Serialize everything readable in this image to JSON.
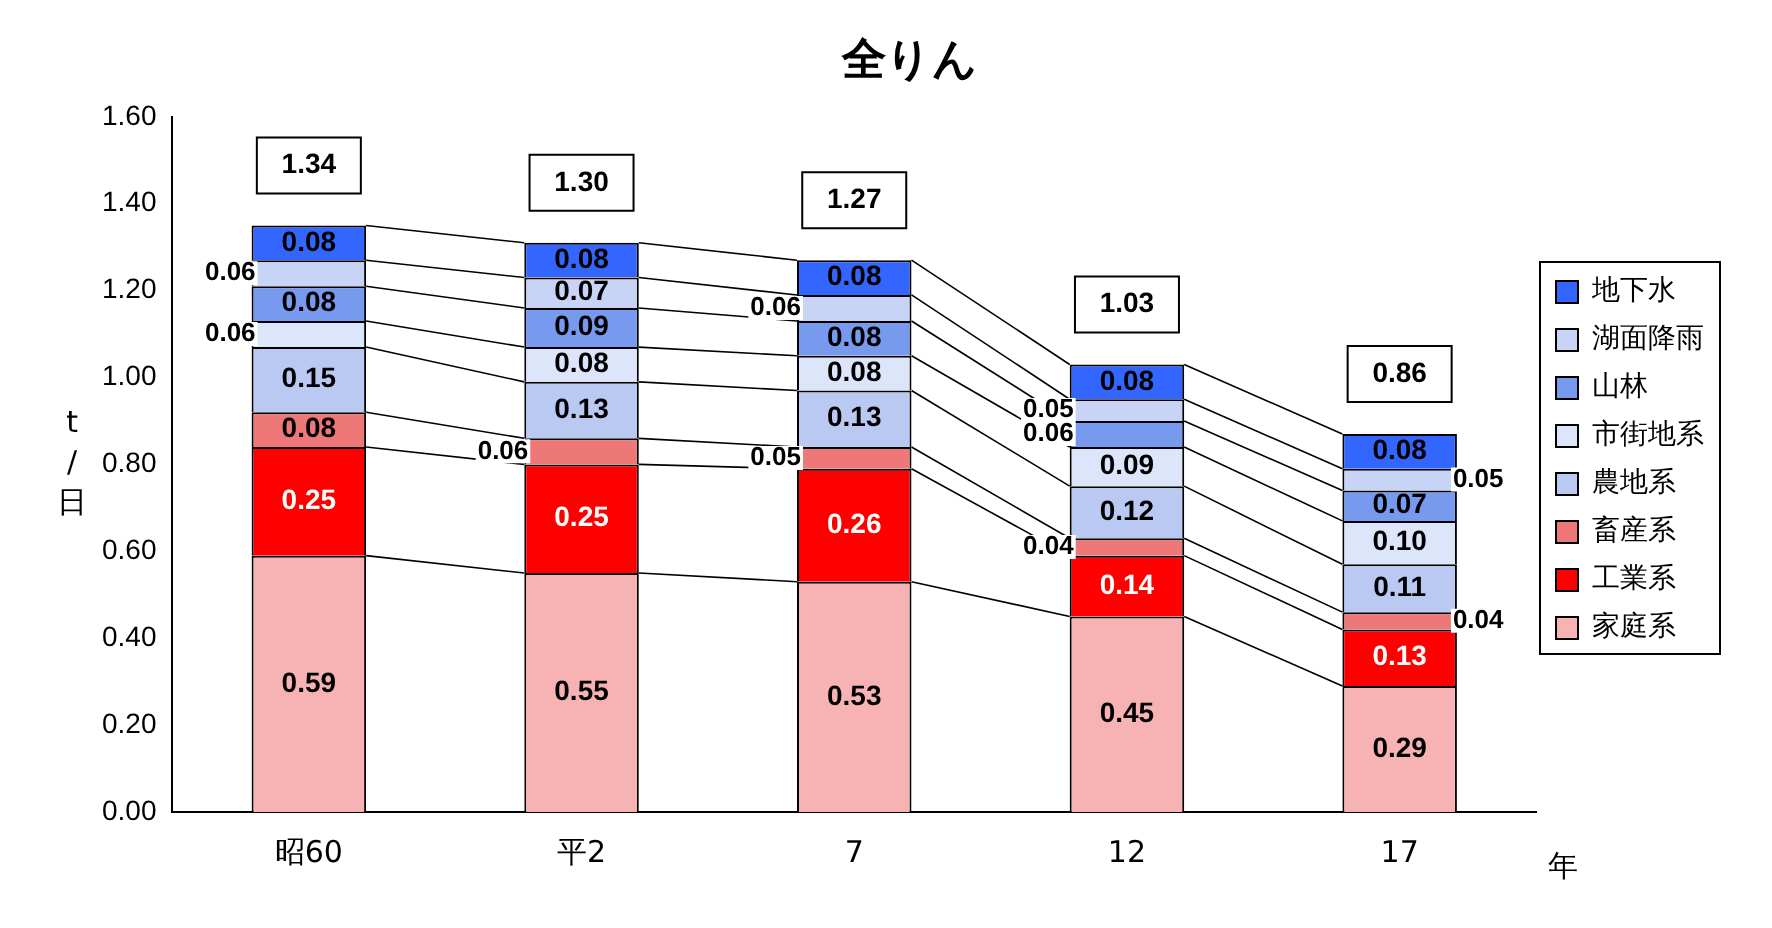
{
  "chart_data": {
    "type": "bar",
    "title": "全りん",
    "ylabel": "t/日",
    "xlabel": "年",
    "categories": [
      "昭60",
      "平2",
      "7",
      "12",
      "17"
    ],
    "stacked": true,
    "ylim": [
      0,
      1.6
    ],
    "yticks": [
      {
        "value": 0,
        "label": "0.00"
      },
      {
        "value": 0.2,
        "label": "0.20"
      },
      {
        "value": 0.4,
        "label": "0.40"
      },
      {
        "value": 0.6,
        "label": "0.60"
      },
      {
        "value": 0.8,
        "label": "0.80"
      },
      {
        "value": 1,
        "label": "1.00"
      },
      {
        "value": 1.2,
        "label": "1.20"
      },
      {
        "value": 1.4,
        "label": "1.40"
      },
      {
        "value": 1.6,
        "label": "1.60"
      }
    ],
    "grid": false,
    "legend": "right",
    "totals": [
      "1.34",
      "1.30",
      "1.27",
      "1.03",
      "0.86"
    ],
    "series": [
      {
        "name": "家庭系",
        "color": "#f7b3b3",
        "values": [
          0.59,
          0.55,
          0.53,
          0.45,
          0.29
        ],
        "value_labels": [
          "0.59",
          "0.55",
          "0.53",
          "0.45",
          "0.29"
        ]
      },
      {
        "name": "工業系",
        "color": "#ff0000",
        "values": [
          0.25,
          0.25,
          0.26,
          0.14,
          0.13
        ],
        "value_labels": [
          "0.25",
          "0.25",
          "0.26",
          "0.14",
          "0.13"
        ]
      },
      {
        "name": "畜産系",
        "color": "#ee7777",
        "values": [
          0.08,
          0.06,
          0.05,
          0.04,
          0.04
        ],
        "value_labels": [
          "0.08",
          "0.06",
          "0.05",
          "0.04",
          "0.04"
        ]
      },
      {
        "name": "農地系",
        "color": "#b9c9f2",
        "values": [
          0.15,
          0.13,
          0.13,
          0.12,
          0.11
        ],
        "value_labels": [
          "0.15",
          "0.13",
          "0.13",
          "0.12",
          "0.11"
        ]
      },
      {
        "name": "市街地系",
        "color": "#dde5fb",
        "values": [
          0.06,
          0.08,
          0.08,
          0.09,
          0.1
        ],
        "value_labels": [
          "0.06",
          "0.08",
          "0.08",
          "0.09",
          "0.10"
        ]
      },
      {
        "name": "山林",
        "color": "#7799ee",
        "values": [
          0.08,
          0.09,
          0.08,
          0.06,
          0.07
        ],
        "value_labels": [
          "0.08",
          "0.09",
          "0.08",
          "0.06",
          "0.07"
        ]
      },
      {
        "name": "湖面降雨",
        "color": "#c8d4f5",
        "values": [
          0.06,
          0.07,
          0.06,
          0.05,
          0.05
        ],
        "value_labels": [
          "0.06",
          "0.07",
          "0.06",
          "0.05",
          "0.05"
        ]
      },
      {
        "name": "地下水",
        "color": "#3366ff",
        "values": [
          0.08,
          0.08,
          0.08,
          0.08,
          0.08
        ],
        "value_labels": [
          "0.08",
          "0.08",
          "0.08",
          "0.08",
          "0.08"
        ]
      }
    ]
  }
}
